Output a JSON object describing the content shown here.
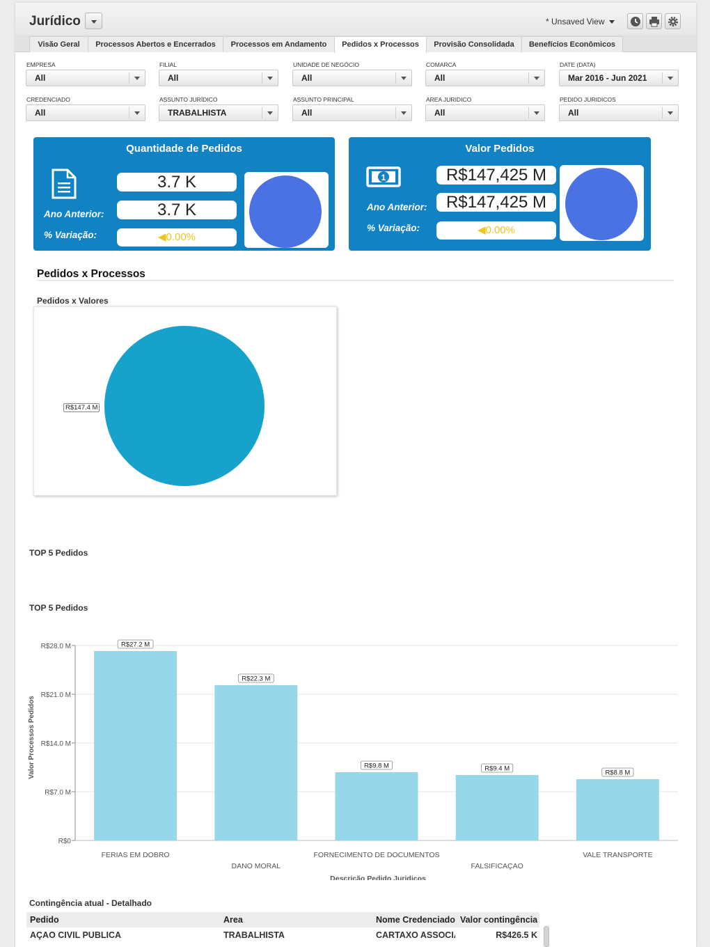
{
  "header": {
    "title": "Jurídico",
    "view_label": "* Unsaved View"
  },
  "tabs": [
    {
      "label": "Visão Geral",
      "active": false
    },
    {
      "label": "Processos Abertos e Encerrados",
      "active": false
    },
    {
      "label": "Processos em Andamento",
      "active": false
    },
    {
      "label": "Pedidos x Processos",
      "active": true
    },
    {
      "label": "Provisão Consolidada",
      "active": false
    },
    {
      "label": "Benefícios Econômicos",
      "active": false
    }
  ],
  "filters": [
    {
      "label": "EMPRESA",
      "value": "All"
    },
    {
      "label": "FILIAL",
      "value": "All"
    },
    {
      "label": "UNIDADE DE NEGÓCIO",
      "value": "All"
    },
    {
      "label": "COMARCA",
      "value": "All"
    },
    {
      "label": "DATE (DATA)",
      "value": "Mar 2016 - Jun 2021"
    },
    {
      "label": "CREDENCIADO",
      "value": "All"
    },
    {
      "label": "ASSUNTO JURÍDICO",
      "value": "TRABALHISTA"
    },
    {
      "label": "ASSUNTO PRINCIPAL",
      "value": "All"
    },
    {
      "label": "AREA JURIDICO",
      "value": "All"
    },
    {
      "label": "PEDIDO JURIDICOS",
      "value": "All"
    }
  ],
  "kpi": {
    "quantidade": {
      "title": "Quantidade de Pedidos",
      "current": "3.7 K",
      "previous_label": "Ano Anterior:",
      "previous": "3.7 K",
      "variation_label": "% Variação:",
      "variation": "◀0.00%"
    },
    "valor": {
      "title": "Valor Pedidos",
      "current": "R$147,425 M",
      "previous_label": "Ano Anterior:",
      "previous": "R$147,425 M",
      "variation_label": "% Variação:",
      "variation": "◀0.00%"
    },
    "colors": {
      "card": "#1183c4",
      "circle": "#4a72e2",
      "variation": "#f0c419"
    }
  },
  "section": {
    "title": "Pedidos x Processos",
    "pie_title": "Pedidos x Valores",
    "top5_title_1": "TOP 5 Pedidos",
    "top5_title_2": "TOP 5 Pedidos"
  },
  "chart_data": [
    {
      "type": "pie",
      "title": "Pedidos x Valores",
      "slices": [
        {
          "label": "R$147.4 M",
          "value": 147.4
        }
      ],
      "color": "#17a2cc"
    },
    {
      "type": "bar",
      "title": "TOP 5 Pedidos",
      "categories": [
        "FERIAS EM DOBRO",
        "DANO MORAL",
        "FORNECIMENTO DE DOCUMENTOS",
        "FALSIFICAÇAO",
        "VALE TRANSPORTE"
      ],
      "values": [
        27.2,
        22.3,
        9.8,
        9.4,
        8.8
      ],
      "value_labels": [
        "R$27.2 M",
        "R$22.3 M",
        "R$9.8 M",
        "R$9.4 M",
        "R$8.8 M"
      ],
      "ylabel": "Valor Processos Pedidos",
      "xlabel": "Descrição Pedido Juridicos",
      "ylim": [
        0,
        28
      ],
      "yticks": [
        0,
        7,
        14,
        21,
        28
      ],
      "ytick_labels": [
        "R$0",
        "R$7.0 M",
        "R$14.0 M",
        "R$21.0 M",
        "R$28.0 M"
      ],
      "grid": true,
      "color": "#97d7ea"
    }
  ],
  "table": {
    "title": "Contingência atual - Detalhado",
    "columns": [
      "Pedido",
      "Area",
      "Nome Credenciado",
      "Valor contingência"
    ],
    "rows": [
      [
        "AÇAO CIVIL PUBLICA",
        "TRABALHISTA",
        "CARTAXO ASSOCIA",
        "R$426.5 K"
      ]
    ]
  }
}
